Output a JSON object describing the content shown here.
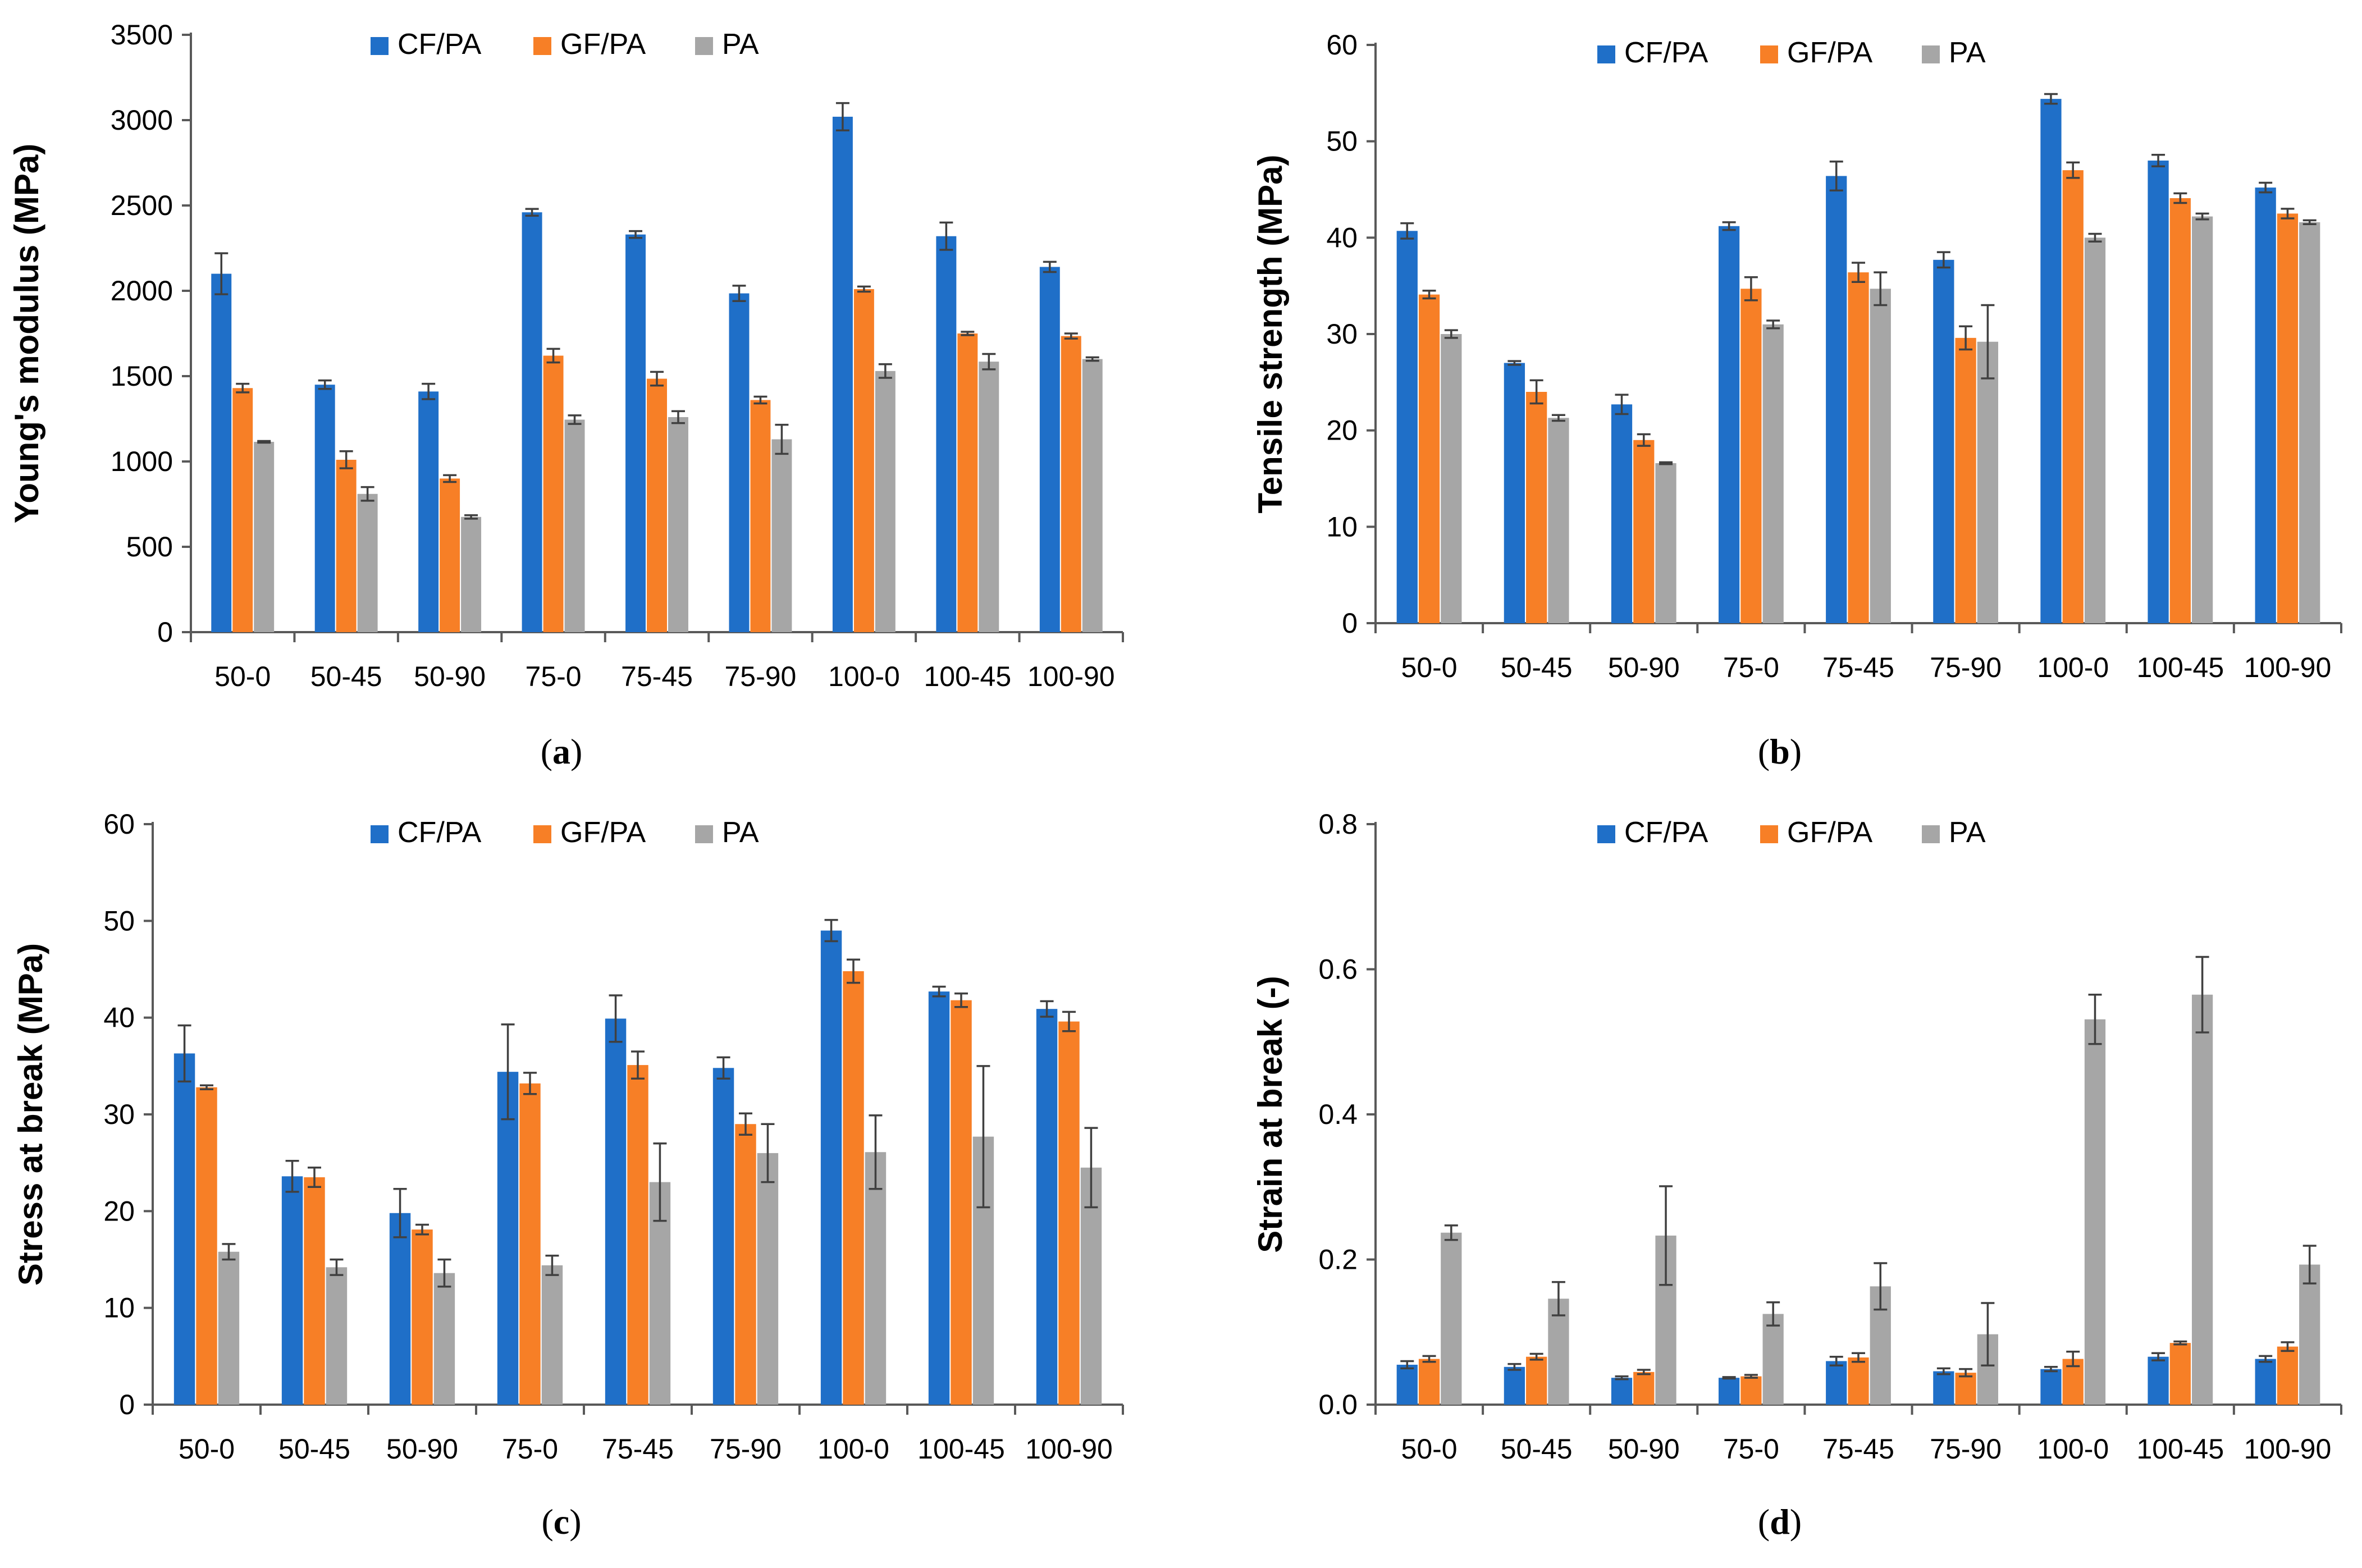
{
  "chart_data": [
    {
      "type": "bar",
      "panel": "a",
      "ylabel": "Young's modulus (MPa)",
      "xlabel": "",
      "ylim": [
        0,
        3500
      ],
      "yticks": [
        0,
        500,
        1000,
        1500,
        2000,
        2500,
        3000,
        3500
      ],
      "legend": "top",
      "categories": [
        "50-0",
        "50-45",
        "50-90",
        "75-0",
        "75-45",
        "75-90",
        "100-0",
        "100-45",
        "100-90"
      ],
      "series": [
        {
          "name": "CF/PA",
          "color": "#1F6FC8",
          "values": [
            2100,
            1450,
            1410,
            2460,
            2330,
            1985,
            3020,
            2320,
            2140
          ],
          "errors": [
            120,
            25,
            45,
            20,
            20,
            45,
            80,
            80,
            30
          ]
        },
        {
          "name": "GF/PA",
          "color": "#F77F26",
          "values": [
            1430,
            1010,
            900,
            1620,
            1485,
            1360,
            2010,
            1750,
            1735
          ],
          "errors": [
            25,
            50,
            20,
            40,
            40,
            20,
            15,
            10,
            15
          ]
        },
        {
          "name": "PA",
          "color": "#A6A6A6",
          "values": [
            1115,
            810,
            675,
            1245,
            1260,
            1130,
            1530,
            1585,
            1600
          ],
          "errors": [
            5,
            40,
            10,
            25,
            35,
            85,
            40,
            45,
            10
          ]
        }
      ]
    },
    {
      "type": "bar",
      "panel": "b",
      "ylabel": "Tensile strength (MPa)",
      "xlabel": "",
      "ylim": [
        0,
        60
      ],
      "yticks": [
        0,
        10,
        20,
        30,
        40,
        50,
        60
      ],
      "legend": "top",
      "categories": [
        "50-0",
        "50-45",
        "50-90",
        "75-0",
        "75-45",
        "75-90",
        "100-0",
        "100-45",
        "100-90"
      ],
      "series": [
        {
          "name": "CF/PA",
          "color": "#1F6FC8",
          "values": [
            40.7,
            27.0,
            22.7,
            41.2,
            46.4,
            37.7,
            54.4,
            48.0,
            45.2
          ],
          "errors": [
            0.8,
            0.2,
            1.0,
            0.4,
            1.5,
            0.8,
            0.5,
            0.6,
            0.5
          ]
        },
        {
          "name": "GF/PA",
          "color": "#F77F26",
          "values": [
            34.1,
            24.0,
            19.0,
            34.7,
            36.4,
            29.6,
            47.0,
            44.1,
            42.5
          ],
          "errors": [
            0.4,
            1.2,
            0.6,
            1.2,
            1.0,
            1.2,
            0.8,
            0.5,
            0.5
          ]
        },
        {
          "name": "PA",
          "color": "#A6A6A6",
          "values": [
            30.0,
            21.3,
            16.6,
            31.0,
            34.7,
            29.2,
            40.0,
            42.2,
            41.6
          ],
          "errors": [
            0.4,
            0.3,
            0.1,
            0.4,
            1.7,
            3.8,
            0.4,
            0.3,
            0.2
          ]
        }
      ]
    },
    {
      "type": "bar",
      "panel": "c",
      "ylabel": "Stress at break (MPa)",
      "xlabel": "",
      "ylim": [
        0,
        60
      ],
      "yticks": [
        0,
        10,
        20,
        30,
        40,
        50,
        60
      ],
      "legend": "top",
      "categories": [
        "50-0",
        "50-45",
        "50-90",
        "75-0",
        "75-45",
        "75-90",
        "100-0",
        "100-45",
        "100-90"
      ],
      "series": [
        {
          "name": "CF/PA",
          "color": "#1F6FC8",
          "values": [
            36.3,
            23.6,
            19.8,
            34.4,
            39.9,
            34.8,
            49.0,
            42.7,
            40.9
          ],
          "errors": [
            2.9,
            1.6,
            2.5,
            4.9,
            2.4,
            1.1,
            1.1,
            0.5,
            0.8
          ]
        },
        {
          "name": "GF/PA",
          "color": "#F77F26",
          "values": [
            32.8,
            23.5,
            18.1,
            33.2,
            35.1,
            29.0,
            44.8,
            41.8,
            39.6
          ],
          "errors": [
            0.2,
            1.0,
            0.5,
            1.1,
            1.4,
            1.1,
            1.2,
            0.7,
            1.0
          ]
        },
        {
          "name": "PA",
          "color": "#A6A6A6",
          "values": [
            15.8,
            14.2,
            13.6,
            14.4,
            23.0,
            26.0,
            26.1,
            27.7,
            24.5
          ],
          "errors": [
            0.8,
            0.8,
            1.4,
            1.0,
            4.0,
            3.0,
            3.8,
            7.3,
            4.1
          ]
        }
      ]
    },
    {
      "type": "bar",
      "panel": "d",
      "ylabel": "Strain at break (-)",
      "xlabel": "",
      "ylim": [
        0,
        0.8
      ],
      "yticks": [
        0.0,
        0.2,
        0.4,
        0.6,
        0.8
      ],
      "ytick_labels": [
        "0.0",
        "0.2",
        "0.4",
        "0.6",
        "0.8"
      ],
      "legend": "top",
      "categories": [
        "50-0",
        "50-45",
        "50-90",
        "75-0",
        "75-45",
        "75-90",
        "100-0",
        "100-45",
        "100-90"
      ],
      "series": [
        {
          "name": "CF/PA",
          "color": "#1F6FC8",
          "values": [
            0.055,
            0.052,
            0.037,
            0.037,
            0.06,
            0.046,
            0.049,
            0.066,
            0.063
          ],
          "errors": [
            0.005,
            0.004,
            0.002,
            0.001,
            0.006,
            0.004,
            0.003,
            0.005,
            0.004
          ]
        },
        {
          "name": "GF/PA",
          "color": "#F77F26",
          "values": [
            0.063,
            0.066,
            0.045,
            0.039,
            0.065,
            0.044,
            0.063,
            0.085,
            0.08
          ],
          "errors": [
            0.004,
            0.004,
            0.003,
            0.002,
            0.006,
            0.005,
            0.01,
            0.002,
            0.006
          ]
        },
        {
          "name": "PA",
          "color": "#A6A6A6",
          "values": [
            0.237,
            0.146,
            0.233,
            0.125,
            0.163,
            0.097,
            0.531,
            0.565,
            0.193
          ],
          "errors": [
            0.01,
            0.023,
            0.068,
            0.016,
            0.032,
            0.043,
            0.034,
            0.052,
            0.026
          ]
        }
      ]
    }
  ],
  "panel_labels": [
    {
      "open": "(",
      "letter": "a",
      "close": ")"
    },
    {
      "open": "(",
      "letter": "b",
      "close": ")"
    },
    {
      "open": "(",
      "letter": "c",
      "close": ")"
    },
    {
      "open": "(",
      "letter": "d",
      "close": ")"
    }
  ]
}
